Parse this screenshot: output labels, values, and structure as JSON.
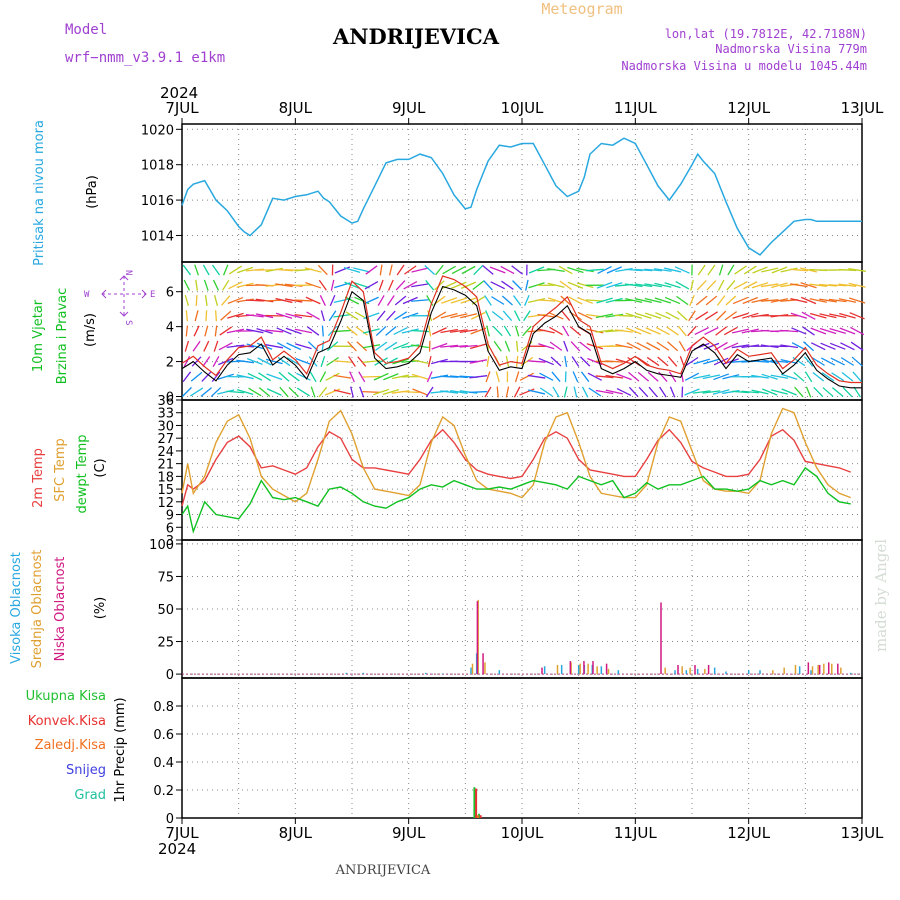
{
  "header": {
    "model_label": "Model",
    "model_name": "wrf−nmm_v3.9.1  e1km",
    "title": "ANDRIJEVICA",
    "meteogram_label": "Meteogram",
    "lonlat": "lon,lat (19.7812E, 42.7188N)",
    "altitude": "Nadmorska Visina 779m",
    "model_altitude": "Nadmorska Visina u modelu 1045.44m",
    "year_top": "2024",
    "year_bottom": "2024",
    "footer_title": "ANDRIJEVICA",
    "watermark": "made by Angel"
  },
  "colors": {
    "pressure": "#29a8e0",
    "temp2m": "#e84040",
    "sfc": "#e0a030",
    "dewpt": "#10c020",
    "cloud_high": "#29a8e0",
    "cloud_mid": "#e0a030",
    "cloud_low": "#d01880",
    "precip_total": "#20c030",
    "precip_conv": "#e83030",
    "precip_frozen": "#f07020",
    "snow": "#4040e0",
    "hail": "#20c0a0",
    "wind_speed": "#000000",
    "gust": "#e03020",
    "compass": "#a040d0"
  },
  "chart_data": [
    {
      "panel": "pressure",
      "type": "line",
      "ylabel": "(hPa)",
      "side_labels": [
        "Pritisak na nivou mora"
      ],
      "ylim": [
        1012.5,
        1020.3
      ],
      "yticks": [
        1014,
        1016,
        1018,
        1020
      ],
      "x_days": [
        0,
        0.05,
        0.1,
        0.2,
        0.3,
        0.4,
        0.5,
        0.55,
        0.6,
        0.7,
        0.8,
        0.9,
        1.0,
        1.1,
        1.2,
        1.25,
        1.3,
        1.4,
        1.5,
        1.55,
        1.6,
        1.7,
        1.8,
        1.9,
        2.0,
        2.1,
        2.2,
        2.3,
        2.4,
        2.5,
        2.55,
        2.6,
        2.7,
        2.8,
        2.9,
        3.0,
        3.1,
        3.2,
        3.3,
        3.4,
        3.5,
        3.55,
        3.6,
        3.7,
        3.8,
        3.9,
        4.0,
        4.1,
        4.2,
        4.3,
        4.4,
        4.5,
        4.55,
        4.6,
        4.7,
        4.8,
        4.9,
        5.0,
        5.1,
        5.2,
        5.3,
        5.4,
        5.5,
        5.55,
        5.6,
        5.7,
        5.8,
        5.9,
        6.0
      ],
      "series": [
        {
          "values": [
            1015.7,
            1016.6,
            1016.9,
            1017.1,
            1016.0,
            1015.4,
            1014.5,
            1014.2,
            1014.0,
            1014.6,
            1016.1,
            1016.0,
            1016.2,
            1016.3,
            1016.5,
            1016.1,
            1015.9,
            1015.1,
            1014.7,
            1014.8,
            1015.5,
            1016.8,
            1018.1,
            1018.3,
            1018.3,
            1018.6,
            1018.4,
            1017.5,
            1016.3,
            1015.5,
            1015.6,
            1016.6,
            1018.2,
            1019.1,
            1019.0,
            1019.2,
            1019.2,
            1018.0,
            1016.8,
            1016.2,
            1016.5,
            1017.3,
            1018.6,
            1019.2,
            1019.1,
            1019.5,
            1019.2,
            1018.0,
            1016.8,
            1016.0,
            1016.9,
            1018.0,
            1018.6,
            1018.2,
            1017.5,
            1015.9,
            1014.4,
            1013.3,
            1012.9,
            1013.6,
            1014.2,
            1014.8,
            1014.9,
            1014.9,
            1014.8,
            1014.8,
            1014.8,
            1014.8,
            1014.8
          ]
        }
      ]
    },
    {
      "panel": "wind",
      "type": "line",
      "ylabel": "(m/s)",
      "side_labels": [
        "10m Vjetar",
        "Brzina i Pravac"
      ],
      "compass_labels": [
        "N",
        "W",
        "E",
        "S"
      ],
      "ylim": [
        -0.2,
        7.7
      ],
      "yticks": [
        0,
        2,
        4,
        6
      ],
      "x_days": [
        0,
        0.1,
        0.2,
        0.3,
        0.4,
        0.5,
        0.6,
        0.7,
        0.8,
        0.9,
        1.0,
        1.1,
        1.2,
        1.3,
        1.4,
        1.5,
        1.6,
        1.7,
        1.8,
        1.9,
        2.0,
        2.1,
        2.2,
        2.3,
        2.4,
        2.5,
        2.6,
        2.7,
        2.8,
        2.9,
        3.0,
        3.1,
        3.2,
        3.3,
        3.4,
        3.5,
        3.6,
        3.7,
        3.8,
        3.9,
        4.0,
        4.1,
        4.2,
        4.3,
        4.4,
        4.5,
        4.6,
        4.7,
        4.8,
        4.9,
        5.0,
        5.1,
        5.2,
        5.3,
        5.4,
        5.5,
        5.6,
        5.7,
        5.8,
        5.9,
        6.0
      ],
      "series": [
        {
          "values": [
            1.6,
            2.0,
            1.4,
            0.9,
            1.8,
            2.4,
            2.5,
            3.0,
            1.8,
            2.3,
            1.8,
            1.0,
            2.5,
            2.8,
            4.3,
            6.0,
            5.5,
            2.2,
            1.6,
            1.7,
            1.9,
            2.5,
            4.8,
            6.3,
            6.1,
            5.8,
            5.2,
            2.6,
            1.5,
            1.7,
            1.6,
            3.6,
            4.2,
            4.6,
            5.2,
            4.0,
            3.6,
            1.6,
            1.3,
            1.6,
            2.0,
            1.5,
            1.3,
            1.2,
            1.1,
            2.6,
            3.0,
            2.5,
            1.6,
            2.4,
            2.0,
            2.1,
            2.2,
            1.3,
            1.8,
            2.5,
            1.5,
            1.0,
            0.6,
            0.5,
            0.5
          ]
        },
        {
          "values": [
            1.9,
            2.3,
            1.7,
            1.2,
            2.1,
            2.8,
            2.9,
            3.4,
            2.1,
            2.6,
            2.1,
            1.3,
            2.9,
            3.2,
            4.8,
            6.6,
            6.0,
            2.5,
            1.9,
            2.0,
            2.2,
            2.9,
            5.3,
            6.9,
            6.7,
            6.3,
            5.7,
            3.0,
            1.8,
            2.0,
            1.9,
            4.0,
            4.6,
            5.1,
            5.7,
            4.4,
            4.0,
            1.9,
            1.6,
            1.9,
            2.3,
            1.8,
            1.6,
            1.5,
            1.3,
            2.9,
            3.4,
            2.9,
            1.9,
            2.7,
            2.3,
            2.4,
            2.5,
            1.6,
            2.1,
            2.8,
            1.8,
            1.3,
            0.9,
            0.8,
            0.8
          ]
        }
      ]
    },
    {
      "panel": "temperature",
      "type": "line",
      "ylabel": "(C)",
      "side_labels": [
        "2m Temp",
        "SFC Temp",
        "dewpt Temp"
      ],
      "ylim": [
        3,
        36
      ],
      "yticks": [
        3,
        6,
        9,
        12,
        15,
        18,
        21,
        24,
        27,
        30,
        33,
        36
      ],
      "x_days": [
        0,
        0.05,
        0.1,
        0.2,
        0.3,
        0.4,
        0.5,
        0.6,
        0.7,
        0.8,
        0.9,
        1.0,
        1.1,
        1.2,
        1.3,
        1.4,
        1.5,
        1.6,
        1.7,
        1.8,
        1.9,
        2.0,
        2.1,
        2.2,
        2.3,
        2.4,
        2.5,
        2.6,
        2.7,
        2.8,
        2.9,
        3.0,
        3.1,
        3.2,
        3.3,
        3.4,
        3.5,
        3.6,
        3.7,
        3.8,
        3.9,
        4.0,
        4.1,
        4.2,
        4.3,
        4.4,
        4.5,
        4.6,
        4.7,
        4.8,
        4.9,
        5.0,
        5.1,
        5.2,
        5.3,
        5.4,
        5.5,
        5.6,
        5.7,
        5.8,
        5.9,
        6.0
      ],
      "series": [
        {
          "values": [
            11,
            16,
            15,
            17,
            22,
            26,
            27.5,
            25,
            20,
            20.5,
            19.5,
            18.5,
            20,
            25,
            28.5,
            27,
            22,
            20,
            20,
            19.5,
            19,
            18.5,
            22,
            26.5,
            29,
            26,
            22,
            19.5,
            18.5,
            18,
            17.5,
            18,
            22,
            27,
            28.5,
            27,
            22,
            19.5,
            19,
            18.5,
            18,
            18,
            22,
            26.5,
            29,
            26,
            21.5,
            20,
            19,
            18,
            18,
            18.5,
            22,
            27.5,
            29,
            26.5,
            21.5,
            21,
            20.5,
            20,
            19
          ]
        },
        {
          "values": [
            14,
            21,
            14,
            18,
            26,
            31,
            32.5,
            27,
            18,
            15,
            13.5,
            12,
            14,
            22,
            31,
            33.5,
            28,
            20,
            15,
            14.5,
            14,
            13.5,
            16,
            26,
            32,
            30,
            23,
            17,
            15,
            14.5,
            14,
            13,
            16,
            26,
            32,
            33,
            26,
            18,
            14,
            13.5,
            13,
            13,
            16,
            26,
            32,
            31,
            24,
            17,
            15,
            14.5,
            14.5,
            14,
            17,
            28,
            34,
            33,
            26,
            20,
            16,
            14,
            13
          ]
        },
        {
          "values": [
            9,
            11,
            5,
            12,
            9,
            8.5,
            8,
            11.5,
            17,
            13,
            12.5,
            13,
            12,
            11,
            15,
            15.5,
            14,
            12,
            11,
            10.5,
            12,
            13,
            15,
            16,
            15.5,
            17,
            16,
            15,
            15,
            15.5,
            15,
            16,
            17,
            16.5,
            16,
            15,
            18,
            17,
            16,
            17,
            13,
            14,
            16.5,
            15,
            16,
            16,
            17,
            18,
            15,
            15,
            14.5,
            15,
            17,
            16,
            17,
            16,
            20,
            18,
            14,
            12,
            11.5
          ]
        }
      ]
    },
    {
      "panel": "cloud",
      "type": "bar",
      "ylabel": "(%)",
      "side_labels": [
        "Visoka Oblacnost",
        "Srednja Oblacnost",
        "Niska Oblacnost"
      ],
      "ylim": [
        -3,
        103
      ],
      "yticks": [
        0,
        25,
        50,
        75,
        100
      ],
      "series": [
        {
          "name": "Visoka Oblacnost",
          "points": [
            [
              1.45,
              1
            ],
            [
              1.6,
              1
            ],
            [
              2.15,
              1
            ],
            [
              2.3,
              0.5
            ],
            [
              2.55,
              5
            ],
            [
              2.6,
              16
            ],
            [
              2.8,
              3
            ],
            [
              3.2,
              6
            ],
            [
              3.35,
              7
            ],
            [
              3.5,
              7
            ],
            [
              3.55,
              7
            ],
            [
              3.62,
              7
            ],
            [
              3.7,
              6
            ],
            [
              3.85,
              3
            ],
            [
              4.35,
              3
            ],
            [
              4.45,
              3
            ],
            [
              4.55,
              4
            ],
            [
              4.7,
              5
            ],
            [
              4.8,
              2
            ],
            [
              5.0,
              3
            ],
            [
              5.1,
              3
            ],
            [
              5.45,
              6
            ],
            [
              5.55,
              3
            ],
            [
              5.9,
              1
            ]
          ]
        },
        {
          "name": "Srednja Oblacnost",
          "points": [
            [
              2.55,
              8
            ],
            [
              2.6,
              57
            ],
            [
              2.66,
              9
            ],
            [
              3.3,
              7
            ],
            [
              3.42,
              9
            ],
            [
              3.5,
              8
            ],
            [
              3.57,
              8
            ],
            [
              3.65,
              6
            ],
            [
              3.75,
              4
            ],
            [
              4.25,
              5
            ],
            [
              4.4,
              6
            ],
            [
              4.47,
              5
            ],
            [
              4.6,
              4
            ],
            [
              5.2,
              3
            ],
            [
              5.3,
              5
            ],
            [
              5.4,
              7
            ],
            [
              5.55,
              6
            ],
            [
              5.6,
              7
            ],
            [
              5.65,
              8
            ],
            [
              5.72,
              8
            ],
            [
              5.8,
              5
            ]
          ]
        },
        {
          "name": "Niska Oblacnost",
          "points": [
            [
              2.58,
              56
            ],
            [
              2.63,
              16
            ],
            [
              3.15,
              5
            ],
            [
              3.4,
              10
            ],
            [
              3.52,
              10
            ],
            [
              3.6,
              10
            ],
            [
              3.72,
              8
            ],
            [
              4.2,
              55
            ],
            [
              4.35,
              7
            ],
            [
              4.5,
              7
            ],
            [
              4.62,
              7
            ],
            [
              5.5,
              9
            ],
            [
              5.6,
              7
            ],
            [
              5.68,
              9
            ],
            [
              5.76,
              8
            ]
          ]
        }
      ]
    },
    {
      "panel": "precip",
      "type": "bar",
      "ylabel": "1hr Precip (mm)",
      "side_labels": [
        "Ukupna Kisa",
        "Konvek.Kisa",
        "Zaledj.Kisa",
        "Snijeg",
        "Grad"
      ],
      "ylim": [
        0,
        1.0
      ],
      "yticks": [
        0,
        0.2,
        0.4,
        0.6,
        0.8
      ],
      "series": [
        {
          "name": "Ukupna Kisa",
          "points": [
            [
              2.58,
              0.22
            ],
            [
              2.62,
              0.03
            ]
          ]
        },
        {
          "name": "Konvek.Kisa",
          "points": [
            [
              2.595,
              0.21
            ],
            [
              2.635,
              0.02
            ]
          ]
        },
        {
          "name": "Zaledj.Kisa",
          "points": [
            [
              2.61,
              0.02
            ]
          ]
        }
      ]
    }
  ],
  "x_axis": {
    "labels": [
      "7JUL",
      "8JUL",
      "9JUL",
      "10JUL",
      "11JUL",
      "12JUL",
      "13JUL"
    ],
    "xlim": [
      0,
      6
    ]
  }
}
